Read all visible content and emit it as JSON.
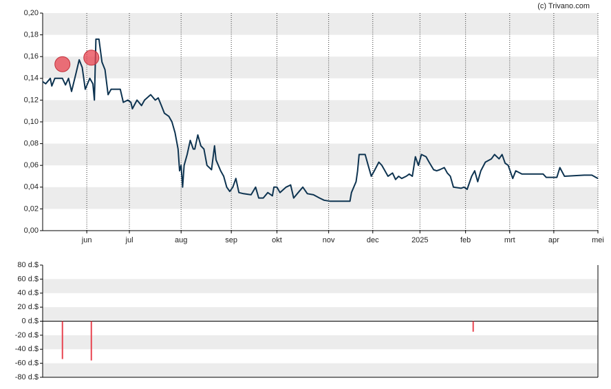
{
  "credit": "(c) Trivano.com",
  "chart_data": [
    {
      "type": "line",
      "color": "#0d3350",
      "grid": true,
      "xlim": [
        0,
        365
      ],
      "xticks": [
        {
          "value": 29,
          "label": "jun"
        },
        {
          "value": 57,
          "label": "jul"
        },
        {
          "value": 91,
          "label": "aug"
        },
        {
          "value": 124,
          "label": "sep"
        },
        {
          "value": 154,
          "label": "okt"
        },
        {
          "value": 188,
          "label": "nov"
        },
        {
          "value": 217,
          "label": "dec"
        },
        {
          "value": 248,
          "label": "2025"
        },
        {
          "value": 278,
          "label": "feb"
        },
        {
          "value": 307,
          "label": "mrt"
        },
        {
          "value": 336,
          "label": "apr"
        },
        {
          "value": 365,
          "label": "mei"
        }
      ],
      "ylim": [
        0,
        0.2
      ],
      "yticks": [
        {
          "value": 0,
          "label": "0,00"
        },
        {
          "value": 0.02,
          "label": "0,02"
        },
        {
          "value": 0.04,
          "label": "0,04"
        },
        {
          "value": 0.06,
          "label": "0,06"
        },
        {
          "value": 0.08,
          "label": "0,08"
        },
        {
          "value": 0.1,
          "label": "0,10"
        },
        {
          "value": 0.12,
          "label": "0,12"
        },
        {
          "value": 0.14,
          "label": "0,14"
        },
        {
          "value": 0.16,
          "label": "0,16"
        },
        {
          "value": 0.18,
          "label": "0,18"
        },
        {
          "value": 0.2,
          "label": "0,20"
        }
      ],
      "x": [
        0,
        2,
        5,
        6,
        8,
        13,
        15,
        17,
        19,
        22,
        24,
        26,
        28,
        31,
        33,
        34,
        35,
        37,
        39,
        41,
        43,
        45,
        48,
        51,
        53,
        56,
        58,
        59,
        62,
        65,
        67,
        71,
        74,
        76,
        78,
        80,
        83,
        85,
        87,
        89,
        90,
        91,
        92,
        93,
        95,
        97,
        99,
        100,
        102,
        104,
        106,
        108,
        111,
        113,
        114,
        117,
        119,
        121,
        123,
        125,
        127,
        129,
        132,
        137,
        140,
        142,
        145,
        148,
        151,
        152,
        154,
        156,
        160,
        163,
        165,
        168,
        171,
        174,
        178,
        182,
        185,
        189,
        198,
        202,
        203,
        206,
        207,
        208,
        212,
        214,
        216,
        218,
        221,
        223,
        225,
        227,
        230,
        232,
        234,
        236,
        239,
        241,
        243,
        245,
        247,
        249,
        252,
        254,
        257,
        259,
        261,
        264,
        266,
        268,
        270,
        275,
        277,
        279,
        282,
        284,
        286,
        288,
        291,
        295,
        297,
        300,
        302,
        304,
        306,
        309,
        311,
        315,
        329,
        331,
        338,
        340,
        343,
        356,
        361,
        365
      ],
      "values": [
        0.137,
        0.135,
        0.14,
        0.133,
        0.14,
        0.14,
        0.134,
        0.14,
        0.128,
        0.145,
        0.157,
        0.15,
        0.13,
        0.14,
        0.135,
        0.12,
        0.176,
        0.176,
        0.155,
        0.148,
        0.125,
        0.13,
        0.13,
        0.13,
        0.118,
        0.12,
        0.118,
        0.112,
        0.12,
        0.115,
        0.12,
        0.125,
        0.12,
        0.122,
        0.115,
        0.108,
        0.105,
        0.1,
        0.09,
        0.075,
        0.055,
        0.06,
        0.04,
        0.06,
        0.07,
        0.083,
        0.075,
        0.075,
        0.088,
        0.078,
        0.075,
        0.06,
        0.056,
        0.078,
        0.065,
        0.055,
        0.05,
        0.04,
        0.036,
        0.04,
        0.048,
        0.035,
        0.034,
        0.033,
        0.04,
        0.03,
        0.03,
        0.035,
        0.032,
        0.04,
        0.04,
        0.035,
        0.04,
        0.042,
        0.03,
        0.035,
        0.04,
        0.034,
        0.033,
        0.03,
        0.028,
        0.027,
        0.027,
        0.027,
        0.035,
        0.045,
        0.055,
        0.07,
        0.07,
        0.06,
        0.05,
        0.055,
        0.063,
        0.06,
        0.055,
        0.05,
        0.053,
        0.047,
        0.05,
        0.048,
        0.05,
        0.052,
        0.05,
        0.068,
        0.06,
        0.07,
        0.068,
        0.063,
        0.056,
        0.055,
        0.056,
        0.058,
        0.053,
        0.05,
        0.04,
        0.039,
        0.04,
        0.038,
        0.05,
        0.055,
        0.045,
        0.055,
        0.063,
        0.066,
        0.07,
        0.066,
        0.07,
        0.062,
        0.06,
        0.048,
        0.055,
        0.052,
        0.052,
        0.049,
        0.049,
        0.058,
        0.05,
        0.051,
        0.051,
        0.048
      ],
      "markers": {
        "color": "#e8434f",
        "x": [
          13,
          32
        ],
        "values": [
          0.153,
          0.159
        ]
      }
    },
    {
      "type": "bar",
      "color": "#e8434f",
      "grid": true,
      "xlim": [
        0,
        365
      ],
      "ylim": [
        -80,
        80
      ],
      "yticks": [
        {
          "value": 80,
          "label": "80 d.$"
        },
        {
          "value": 60,
          "label": "60 d.$"
        },
        {
          "value": 40,
          "label": "40 d.$"
        },
        {
          "value": 20,
          "label": "20 d.$"
        },
        {
          "value": 0,
          "label": "0 d.$"
        },
        {
          "value": -20,
          "label": "-20 d.$"
        },
        {
          "value": -40,
          "label": "-40 d.$"
        },
        {
          "value": -60,
          "label": "-60 d.$"
        },
        {
          "value": -80,
          "label": "-80 d.$"
        }
      ],
      "x": [
        13,
        32,
        283
      ],
      "values": [
        -54,
        -56,
        -15
      ]
    }
  ]
}
